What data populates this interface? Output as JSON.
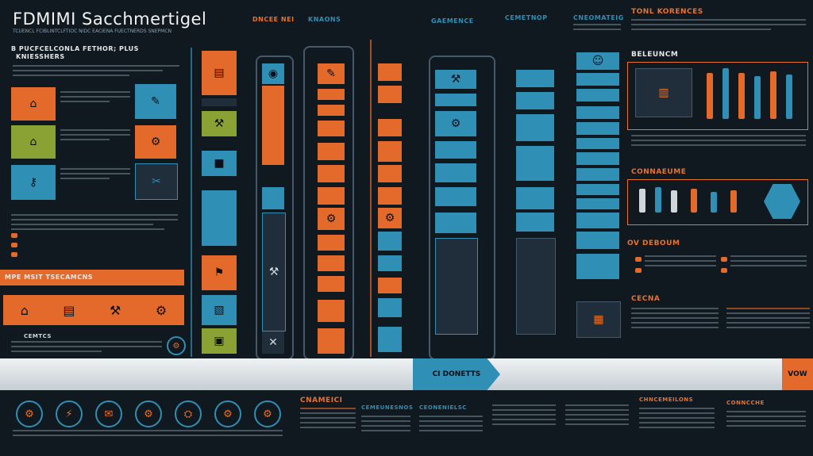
{
  "title": "FDMIMI Sacchmertigel",
  "subtitle_top": "TCUENCL FCIBLINTCLFTIOC NIDC EACIENA FUECTNERDS SNEPMCN",
  "left_panel": {
    "heading": "B PUCFCELCONLA FETHOR; PLUS",
    "subheading": "KNIESSHERS"
  },
  "section_headers": {
    "col1": "DNCEE NEI",
    "col2": "KNAONS",
    "col3": "GAEMENCE",
    "col4": "CEMETNOP",
    "col5": "CNEOMATEIG",
    "top_right": "TONL KORENCES",
    "right_b": "BELEUNCM",
    "right_c": "CONNAEUME",
    "right_d": "OV DEBOUM",
    "right_e": "CECNA"
  },
  "orange_banner": "MPE MSIT TSECAMCNS",
  "arrow_label": "CI DONETTS",
  "vow_label": "VOW",
  "bottom_headers": {
    "b1": "CNAMEICI",
    "b2": "CEMEUNESNOS",
    "b3": "CEONENIELSC",
    "b4": "CHNCEMEILONS",
    "b5": "CONNCCHE"
  },
  "bottom_icons": [
    "⚙",
    "⚡",
    "✉",
    "⚙",
    "⛭",
    "⚙",
    "⚙"
  ],
  "icons": {
    "house": "house-icon",
    "gear": "gear-icon",
    "tool": "wrench-icon"
  },
  "colors": {
    "orange": "#e46a2b",
    "blue": "#2f8fb5",
    "green": "#8aa233",
    "bg": "#101820"
  }
}
